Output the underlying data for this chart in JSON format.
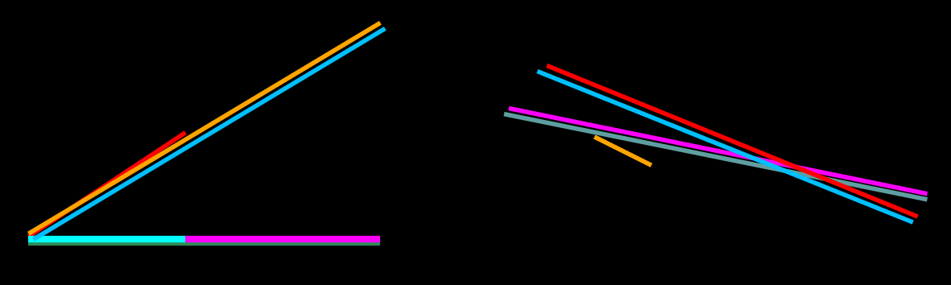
{
  "bg_color": "#000000",
  "fig_width": 11.81,
  "fig_height": 3.54,
  "left_diagram": {
    "lines": [
      {
        "color": "#FFA500",
        "x": [
          0.03,
          0.4
        ],
        "y": [
          0.18,
          0.92
        ],
        "lw": 4,
        "zorder": 3
      },
      {
        "color": "#00BFFF",
        "x": [
          0.035,
          0.405
        ],
        "y": [
          0.16,
          0.9
        ],
        "lw": 4,
        "zorder": 4
      },
      {
        "color": "#FF0000",
        "x": [
          0.03,
          0.195
        ],
        "y": [
          0.17,
          0.535
        ],
        "lw": 4,
        "zorder": 2
      },
      {
        "color": "#2E8B57",
        "x": [
          0.03,
          0.4
        ],
        "y": [
          0.145,
          0.145
        ],
        "lw": 3,
        "zorder": 1
      },
      {
        "color": "#00FFFF",
        "x": [
          0.03,
          0.195
        ],
        "y": [
          0.16,
          0.16
        ],
        "lw": 6,
        "zorder": 2
      },
      {
        "color": "#FF00FF",
        "x": [
          0.195,
          0.4
        ],
        "y": [
          0.16,
          0.16
        ],
        "lw": 6,
        "zorder": 2
      }
    ]
  },
  "right_diagram": {
    "lines": [
      {
        "color": "#00BFFF",
        "x": [
          0.565,
          0.96
        ],
        "y": [
          0.75,
          0.22
        ],
        "lw": 4,
        "zorder": 3
      },
      {
        "color": "#FF0000",
        "x": [
          0.575,
          0.965
        ],
        "y": [
          0.77,
          0.24
        ],
        "lw": 4,
        "zorder": 4
      },
      {
        "color": "#FF00FF",
        "x": [
          0.535,
          0.975
        ],
        "y": [
          0.62,
          0.32
        ],
        "lw": 4,
        "zorder": 2
      },
      {
        "color": "#5F9EA0",
        "x": [
          0.53,
          0.975
        ],
        "y": [
          0.6,
          0.3
        ],
        "lw": 4,
        "zorder": 1
      },
      {
        "color": "#FFA500",
        "x": [
          0.625,
          0.685
        ],
        "y": [
          0.52,
          0.42
        ],
        "lw": 4,
        "zorder": 5
      }
    ]
  }
}
